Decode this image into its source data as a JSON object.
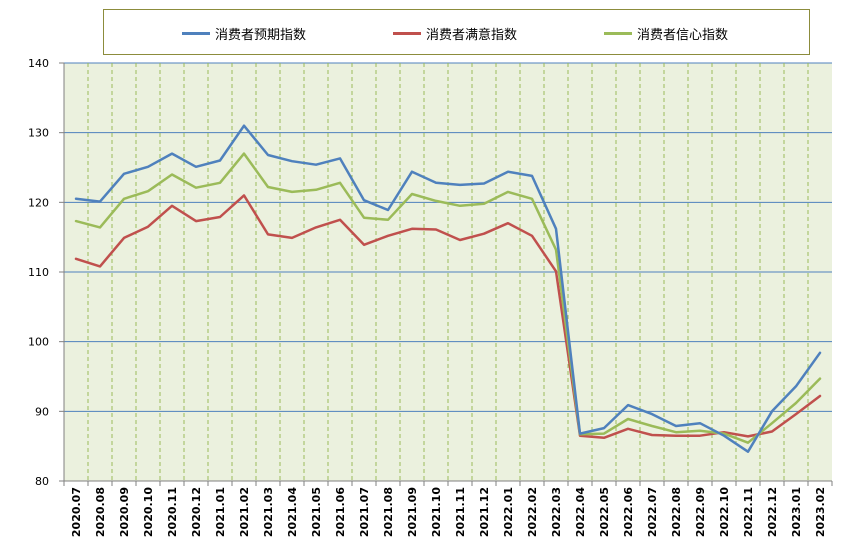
{
  "colors": {
    "plot_background": "#ebf1de",
    "grid_major": "#4f81bd",
    "grid_vertical": "#9bbb59",
    "axis": "#808080"
  },
  "chart_data": {
    "type": "line",
    "title": "",
    "xlabel": "",
    "ylabel": "",
    "ylim": [
      80,
      140
    ],
    "yticks": [
      80,
      90,
      100,
      110,
      120,
      130,
      140
    ],
    "grid": true,
    "legend_position": "top",
    "categories": [
      "2020.07",
      "2020.08",
      "2020.09",
      "2020.10",
      "2020.11",
      "2020.12",
      "2021.01",
      "2021.02",
      "2021.03",
      "2021.04",
      "2021.05",
      "2021.06",
      "2021.07",
      "2021.08",
      "2021.09",
      "2021.10",
      "2021.11",
      "2021.12",
      "2022.01",
      "2022.02",
      "2022.03",
      "2022.04",
      "2022.05",
      "2022.06",
      "2022.07",
      "2022.08",
      "2022.09",
      "2022.10",
      "2022.11",
      "2022.12",
      "2023.01",
      "2023.02"
    ],
    "series": [
      {
        "name": "消费者预期指数",
        "color": "#4f81bd",
        "values": [
          120.5,
          120.1,
          124.1,
          125.1,
          127.0,
          125.1,
          126.0,
          131.0,
          126.8,
          125.9,
          125.4,
          126.3,
          120.3,
          118.9,
          124.4,
          122.8,
          122.5,
          122.7,
          124.4,
          123.8,
          116.2,
          86.8,
          87.6,
          90.9,
          89.6,
          87.9,
          88.3,
          86.5,
          84.2,
          90.0,
          93.6,
          98.4
        ]
      },
      {
        "name": "消费者满意指数",
        "color": "#c0504d",
        "values": [
          111.9,
          110.8,
          114.9,
          116.5,
          119.5,
          117.3,
          117.9,
          121.0,
          115.4,
          114.9,
          116.4,
          117.5,
          113.9,
          115.2,
          116.2,
          116.1,
          114.6,
          115.5,
          117.0,
          115.2,
          110.1,
          86.5,
          86.2,
          87.5,
          86.6,
          86.5,
          86.5,
          87.0,
          86.4,
          87.1,
          89.6,
          92.2
        ]
      },
      {
        "name": "消费者信心指数",
        "color": "#9bbb59",
        "values": [
          117.3,
          116.4,
          120.5,
          121.6,
          124.0,
          122.1,
          122.8,
          127.0,
          122.2,
          121.5,
          121.8,
          122.8,
          117.8,
          117.5,
          121.2,
          120.2,
          119.5,
          119.8,
          121.5,
          120.5,
          113.2,
          86.7,
          86.8,
          88.9,
          87.9,
          87.0,
          87.2,
          86.8,
          85.5,
          88.3,
          91.2,
          94.7
        ]
      }
    ]
  }
}
